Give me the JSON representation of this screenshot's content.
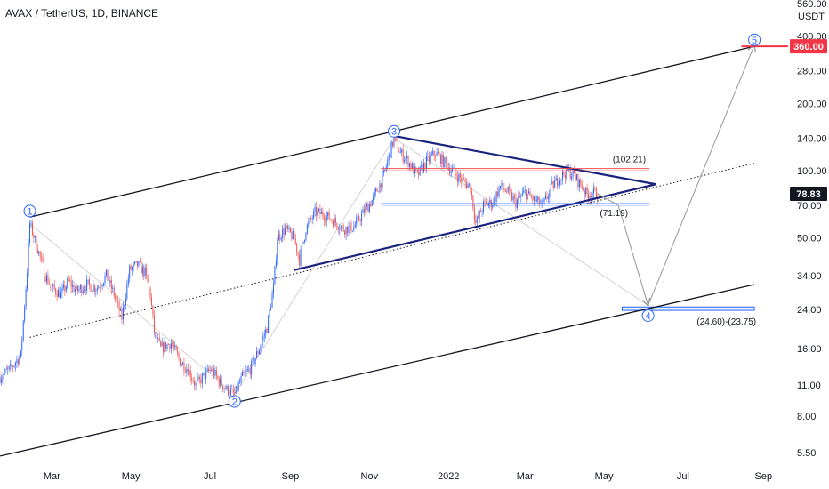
{
  "header": {
    "title": "AVAX / TetherUS, 1D, BINANCE"
  },
  "price_axis": {
    "unit": "USDT"
  },
  "colors": {
    "up": "#2962ff",
    "down": "#ef5350",
    "channel": "#131722",
    "triangle": "#1a237e",
    "target_badge": "#f23645",
    "price_badge": "#131722",
    "resistance": "#ef5350",
    "support": "#2962ff",
    "projection": "#9e9e9e",
    "wave": "#2962ff"
  },
  "chart_data": {
    "type": "line",
    "title": "AVAX / TetherUS, 1D, BINANCE",
    "xlabel": "",
    "ylabel": "",
    "y_scale": "log",
    "ylim": [
      5.2,
      580
    ],
    "xlim": [
      "2021-01-20",
      "2022-09-20"
    ],
    "grid": false,
    "x_ticks": [
      {
        "label": "Mar",
        "date": "2021-03-01"
      },
      {
        "label": "May",
        "date": "2021-05-01"
      },
      {
        "label": "Jul",
        "date": "2021-07-01"
      },
      {
        "label": "Sep",
        "date": "2021-09-01"
      },
      {
        "label": "Nov",
        "date": "2021-11-01"
      },
      {
        "label": "2022",
        "date": "2022-01-01"
      },
      {
        "label": "Mar",
        "date": "2022-03-01"
      },
      {
        "label": "May",
        "date": "2022-05-01"
      },
      {
        "label": "Jul",
        "date": "2022-07-01"
      },
      {
        "label": "Sep",
        "date": "2022-09-01"
      }
    ],
    "y_ticks": [
      {
        "label": "5.50",
        "value": 5.5
      },
      {
        "label": "8.00",
        "value": 8
      },
      {
        "label": "11.00",
        "value": 11
      },
      {
        "label": "16.00",
        "value": 16
      },
      {
        "label": "24.00",
        "value": 24
      },
      {
        "label": "34.00",
        "value": 34
      },
      {
        "label": "50.00",
        "value": 50
      },
      {
        "label": "70.00",
        "value": 70
      },
      {
        "label": "100.00",
        "value": 100
      },
      {
        "label": "140.00",
        "value": 140
      },
      {
        "label": "200.00",
        "value": 200
      },
      {
        "label": "280.00",
        "value": 280
      },
      {
        "label": "400.00",
        "value": 400
      },
      {
        "label": "560.00",
        "value": 560
      }
    ],
    "price_path": [
      [
        "2021-01-20",
        12
      ],
      [
        "2021-01-28",
        13
      ],
      [
        "2021-02-05",
        15
      ],
      [
        "2021-02-10",
        36
      ],
      [
        "2021-02-12",
        58
      ],
      [
        "2021-02-18",
        45
      ],
      [
        "2021-02-24",
        34
      ],
      [
        "2021-03-01",
        30
      ],
      [
        "2021-03-08",
        28
      ],
      [
        "2021-03-14",
        32
      ],
      [
        "2021-03-20",
        29
      ],
      [
        "2021-03-28",
        31
      ],
      [
        "2021-04-05",
        30
      ],
      [
        "2021-04-12",
        34
      ],
      [
        "2021-04-18",
        28
      ],
      [
        "2021-04-24",
        22
      ],
      [
        "2021-04-30",
        36
      ],
      [
        "2021-05-06",
        38
      ],
      [
        "2021-05-12",
        35
      ],
      [
        "2021-05-16",
        28
      ],
      [
        "2021-05-19",
        19
      ],
      [
        "2021-05-24",
        16
      ],
      [
        "2021-06-01",
        17
      ],
      [
        "2021-06-08",
        14
      ],
      [
        "2021-06-14",
        13
      ],
      [
        "2021-06-20",
        11
      ],
      [
        "2021-06-26",
        12
      ],
      [
        "2021-07-02",
        13
      ],
      [
        "2021-07-08",
        11.5
      ],
      [
        "2021-07-14",
        10.5
      ],
      [
        "2021-07-20",
        10
      ],
      [
        "2021-07-26",
        12
      ],
      [
        "2021-08-01",
        13
      ],
      [
        "2021-08-08",
        16
      ],
      [
        "2021-08-14",
        20
      ],
      [
        "2021-08-19",
        30
      ],
      [
        "2021-08-22",
        50
      ],
      [
        "2021-08-28",
        55
      ],
      [
        "2021-09-04",
        50
      ],
      [
        "2021-09-08",
        40
      ],
      [
        "2021-09-13",
        55
      ],
      [
        "2021-09-20",
        65
      ],
      [
        "2021-09-26",
        64
      ],
      [
        "2021-10-04",
        60
      ],
      [
        "2021-10-12",
        55
      ],
      [
        "2021-10-20",
        56
      ],
      [
        "2021-10-28",
        66
      ],
      [
        "2021-11-04",
        75
      ],
      [
        "2021-11-12",
        95
      ],
      [
        "2021-11-20",
        140
      ],
      [
        "2021-11-25",
        120
      ],
      [
        "2021-12-01",
        110
      ],
      [
        "2021-12-08",
        95
      ],
      [
        "2021-12-15",
        110
      ],
      [
        "2021-12-22",
        120
      ],
      [
        "2021-12-28",
        110
      ],
      [
        "2022-01-04",
        100
      ],
      [
        "2022-01-12",
        90
      ],
      [
        "2022-01-18",
        85
      ],
      [
        "2022-01-22",
        58
      ],
      [
        "2022-01-28",
        70
      ],
      [
        "2022-02-04",
        72
      ],
      [
        "2022-02-10",
        85
      ],
      [
        "2022-02-16",
        80
      ],
      [
        "2022-02-22",
        72
      ],
      [
        "2022-03-01",
        80
      ],
      [
        "2022-03-08",
        74
      ],
      [
        "2022-03-15",
        70
      ],
      [
        "2022-03-22",
        85
      ],
      [
        "2022-03-29",
        95
      ],
      [
        "2022-04-03",
        100
      ],
      [
        "2022-04-08",
        95
      ],
      [
        "2022-04-14",
        85
      ],
      [
        "2022-04-18",
        78
      ],
      [
        "2022-04-22",
        80
      ],
      [
        "2022-04-26",
        78.83
      ]
    ],
    "channel_upper": [
      [
        "2021-02-12",
        62
      ],
      [
        "2022-08-25",
        360
      ]
    ],
    "channel_lower": [
      [
        "2021-01-20",
        5.3
      ],
      [
        "2022-08-25",
        31
      ]
    ],
    "channel_mid": [
      [
        "2021-02-12",
        18
      ],
      [
        "2022-08-25",
        108
      ]
    ],
    "triangle": {
      "upper": [
        [
          "2021-11-20",
          143
        ],
        [
          "2022-06-10",
          87
        ]
      ],
      "lower": [
        [
          "2021-09-04",
          36
        ],
        [
          "2022-06-10",
          87
        ]
      ]
    },
    "resistance": {
      "value": 102.21,
      "from": "2021-11-10",
      "to": "2022-06-05",
      "label": "(102.21)"
    },
    "support": {
      "value": 71.19,
      "from": "2021-11-10",
      "to": "2022-06-05",
      "label": "(71.19)"
    },
    "target_zone": {
      "from": "2022-05-15",
      "to": "2022-08-25",
      "high": 24.6,
      "low": 23.75,
      "label": "(24.60)-(23.75)"
    },
    "projection": [
      [
        "2022-04-26",
        78.83
      ],
      [
        "2022-05-12",
        70
      ],
      [
        "2022-06-04",
        25
      ],
      [
        "2022-08-25",
        365
      ]
    ],
    "target_line": {
      "value": 360,
      "from": "2022-08-15",
      "to": "2022-09-20"
    },
    "waves": [
      {
        "label": "1",
        "date": "2021-02-12",
        "value": 66,
        "pos": "above"
      },
      {
        "label": "2",
        "date": "2021-07-20",
        "value": 9.3,
        "pos": "below"
      },
      {
        "label": "3",
        "date": "2021-11-20",
        "value": 150,
        "pos": "above"
      },
      {
        "label": "4",
        "date": "2022-06-04",
        "value": 22.5,
        "pos": "below"
      },
      {
        "label": "5",
        "date": "2022-08-25",
        "value": 385,
        "pos": "above"
      }
    ],
    "last_price": {
      "value": 78.83,
      "label": "78.83"
    },
    "target_price": {
      "value": 360,
      "label": "360.00"
    }
  }
}
